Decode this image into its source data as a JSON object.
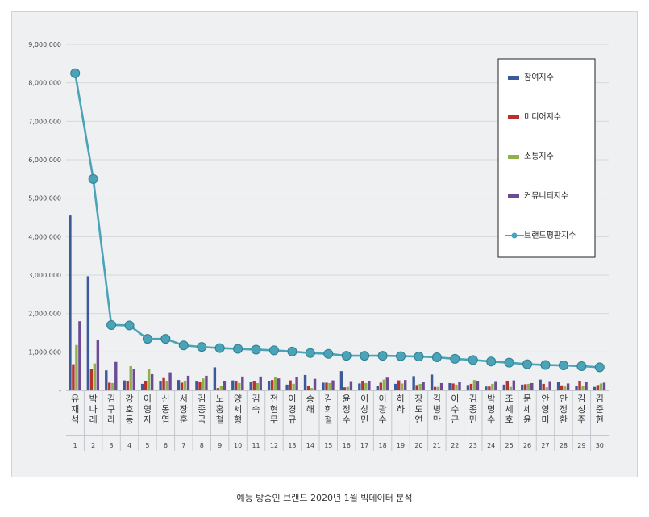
{
  "caption": "예능 방송인 브랜드 2020년 1월 빅데이터 분석",
  "colors": {
    "background": "#eef0f2",
    "participation": "#3b5a9a",
    "media": "#b8312f",
    "communication": "#8fb14a",
    "community": "#6c4b94",
    "brand": "#4ba3b8"
  },
  "chart_data": {
    "type": "bar",
    "combo_line_series": "브랜드평판지수",
    "title": "",
    "xlabel": "",
    "ylabel": "",
    "ylim": [
      0,
      9000000
    ],
    "y_ticks": [
      "-",
      "1,000,000",
      "2,000,000",
      "3,000,000",
      "4,000,000",
      "5,000,000",
      "6,000,000",
      "7,000,000",
      "8,000,000",
      "9,000,000"
    ],
    "grid": true,
    "legend_position": "right",
    "categories": [
      {
        "name": "유재석",
        "rank": "1"
      },
      {
        "name": "박나래",
        "rank": "2"
      },
      {
        "name": "김구라",
        "rank": "3"
      },
      {
        "name": "강호동",
        "rank": "4"
      },
      {
        "name": "이영자",
        "rank": "5"
      },
      {
        "name": "신동엽",
        "rank": "6"
      },
      {
        "name": "서장훈",
        "rank": "7"
      },
      {
        "name": "김종국",
        "rank": "8"
      },
      {
        "name": "노홍철",
        "rank": "9"
      },
      {
        "name": "양세형",
        "rank": "10"
      },
      {
        "name": "김숙",
        "rank": "11"
      },
      {
        "name": "전현무",
        "rank": "12"
      },
      {
        "name": "이경규",
        "rank": "13"
      },
      {
        "name": "송해",
        "rank": "14"
      },
      {
        "name": "김희철",
        "rank": "15"
      },
      {
        "name": "윤정수",
        "rank": "16"
      },
      {
        "name": "이상민",
        "rank": "17"
      },
      {
        "name": "이광수",
        "rank": "18"
      },
      {
        "name": "하하",
        "rank": "19"
      },
      {
        "name": "장도연",
        "rank": "20"
      },
      {
        "name": "김병만",
        "rank": "21"
      },
      {
        "name": "이수근",
        "rank": "22"
      },
      {
        "name": "김종민",
        "rank": "23"
      },
      {
        "name": "박명수",
        "rank": "24"
      },
      {
        "name": "조세호",
        "rank": "25"
      },
      {
        "name": "문세윤",
        "rank": "26"
      },
      {
        "name": "안영미",
        "rank": "27"
      },
      {
        "name": "안정환",
        "rank": "28"
      },
      {
        "name": "김성주",
        "rank": "29"
      },
      {
        "name": "김준현",
        "rank": "30"
      }
    ],
    "series": [
      {
        "name": "참여지수",
        "kind": "bar",
        "color": "#3b5a9a",
        "values": [
          4550000,
          2970000,
          520000,
          260000,
          170000,
          230000,
          270000,
          230000,
          600000,
          260000,
          210000,
          250000,
          150000,
          400000,
          200000,
          500000,
          180000,
          120000,
          170000,
          370000,
          410000,
          190000,
          140000,
          100000,
          150000,
          150000,
          280000,
          210000,
          110000,
          90000
        ]
      },
      {
        "name": "미디어지수",
        "kind": "bar",
        "color": "#b8312f",
        "values": [
          680000,
          560000,
          200000,
          230000,
          250000,
          320000,
          200000,
          210000,
          60000,
          230000,
          230000,
          270000,
          260000,
          120000,
          200000,
          80000,
          250000,
          200000,
          260000,
          140000,
          90000,
          180000,
          170000,
          100000,
          250000,
          160000,
          170000,
          130000,
          240000,
          140000
        ]
      },
      {
        "name": "소통지수",
        "kind": "bar",
        "color": "#8fb14a",
        "values": [
          1180000,
          700000,
          190000,
          630000,
          560000,
          230000,
          240000,
          310000,
          110000,
          190000,
          190000,
          340000,
          170000,
          60000,
          190000,
          90000,
          190000,
          280000,
          180000,
          170000,
          90000,
          150000,
          270000,
          170000,
          90000,
          170000,
          80000,
          100000,
          120000,
          180000
        ]
      },
      {
        "name": "커뮤니티지수",
        "kind": "bar",
        "color": "#6c4b94",
        "values": [
          1800000,
          1300000,
          740000,
          560000,
          420000,
          470000,
          380000,
          380000,
          250000,
          360000,
          360000,
          310000,
          340000,
          300000,
          260000,
          220000,
          240000,
          330000,
          270000,
          210000,
          190000,
          210000,
          230000,
          220000,
          260000,
          190000,
          220000,
          180000,
          210000,
          200000
        ]
      },
      {
        "name": "브랜드평판지수",
        "kind": "line",
        "color": "#4ba3b8",
        "values": [
          8250000,
          5500000,
          1700000,
          1690000,
          1340000,
          1340000,
          1170000,
          1130000,
          1100000,
          1080000,
          1060000,
          1040000,
          1010000,
          970000,
          950000,
          900000,
          900000,
          900000,
          890000,
          880000,
          860000,
          820000,
          790000,
          750000,
          720000,
          680000,
          660000,
          650000,
          630000,
          600000
        ]
      }
    ]
  }
}
